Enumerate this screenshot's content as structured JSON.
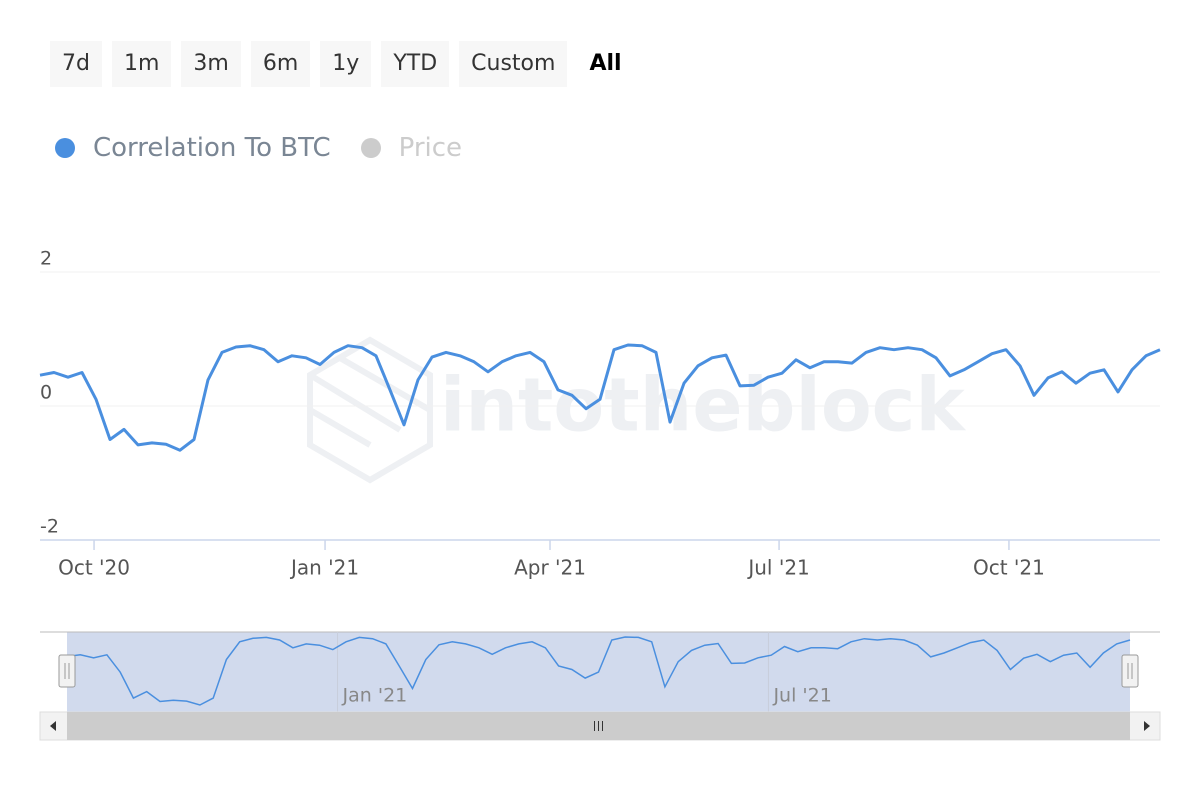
{
  "range_selector": {
    "buttons": [
      "7d",
      "1m",
      "3m",
      "6m",
      "1y",
      "YTD",
      "Custom",
      "All"
    ],
    "selected": 7
  },
  "chart_data": {
    "type": "line",
    "watermark": "intotheblock",
    "series": [
      {
        "name": "Correlation To BTC",
        "color": "#4a8fdf",
        "visible": true,
        "values": [
          0.46,
          0.5,
          0.43,
          0.5,
          0.1,
          -0.5,
          -0.35,
          -0.58,
          -0.55,
          -0.57,
          -0.66,
          -0.5,
          0.39,
          0.8,
          0.88,
          0.9,
          0.84,
          0.66,
          0.75,
          0.72,
          0.62,
          0.8,
          0.9,
          0.87,
          0.75,
          0.24,
          -0.28,
          0.39,
          0.73,
          0.8,
          0.75,
          0.66,
          0.51,
          0.66,
          0.75,
          0.8,
          0.66,
          0.24,
          0.16,
          -0.04,
          0.1,
          0.84,
          0.91,
          0.9,
          0.8,
          -0.24,
          0.34,
          0.6,
          0.72,
          0.76,
          0.3,
          0.31,
          0.43,
          0.49,
          0.69,
          0.57,
          0.66,
          0.66,
          0.64,
          0.8,
          0.87,
          0.84,
          0.87,
          0.84,
          0.72,
          0.45,
          0.54,
          0.66,
          0.78,
          0.84,
          0.6,
          0.16,
          0.42,
          0.51,
          0.34,
          0.49,
          0.54,
          0.21,
          0.54,
          0.75,
          0.84
        ]
      },
      {
        "name": "Price",
        "color": "#cccccc",
        "visible": false
      }
    ],
    "xlim": [
      0,
      80
    ],
    "xticks": [
      {
        "value": 3.86,
        "label": "Oct '20"
      },
      {
        "value": 20.36,
        "label": "Jan '21"
      },
      {
        "value": 36.43,
        "label": "Apr '21"
      },
      {
        "value": 52.79,
        "label": "Jul '21"
      },
      {
        "value": 69.21,
        "label": "Oct '21"
      }
    ],
    "ylim": [
      -2,
      2
    ],
    "yticks": [
      2,
      0,
      -2
    ],
    "grid": true
  }
}
